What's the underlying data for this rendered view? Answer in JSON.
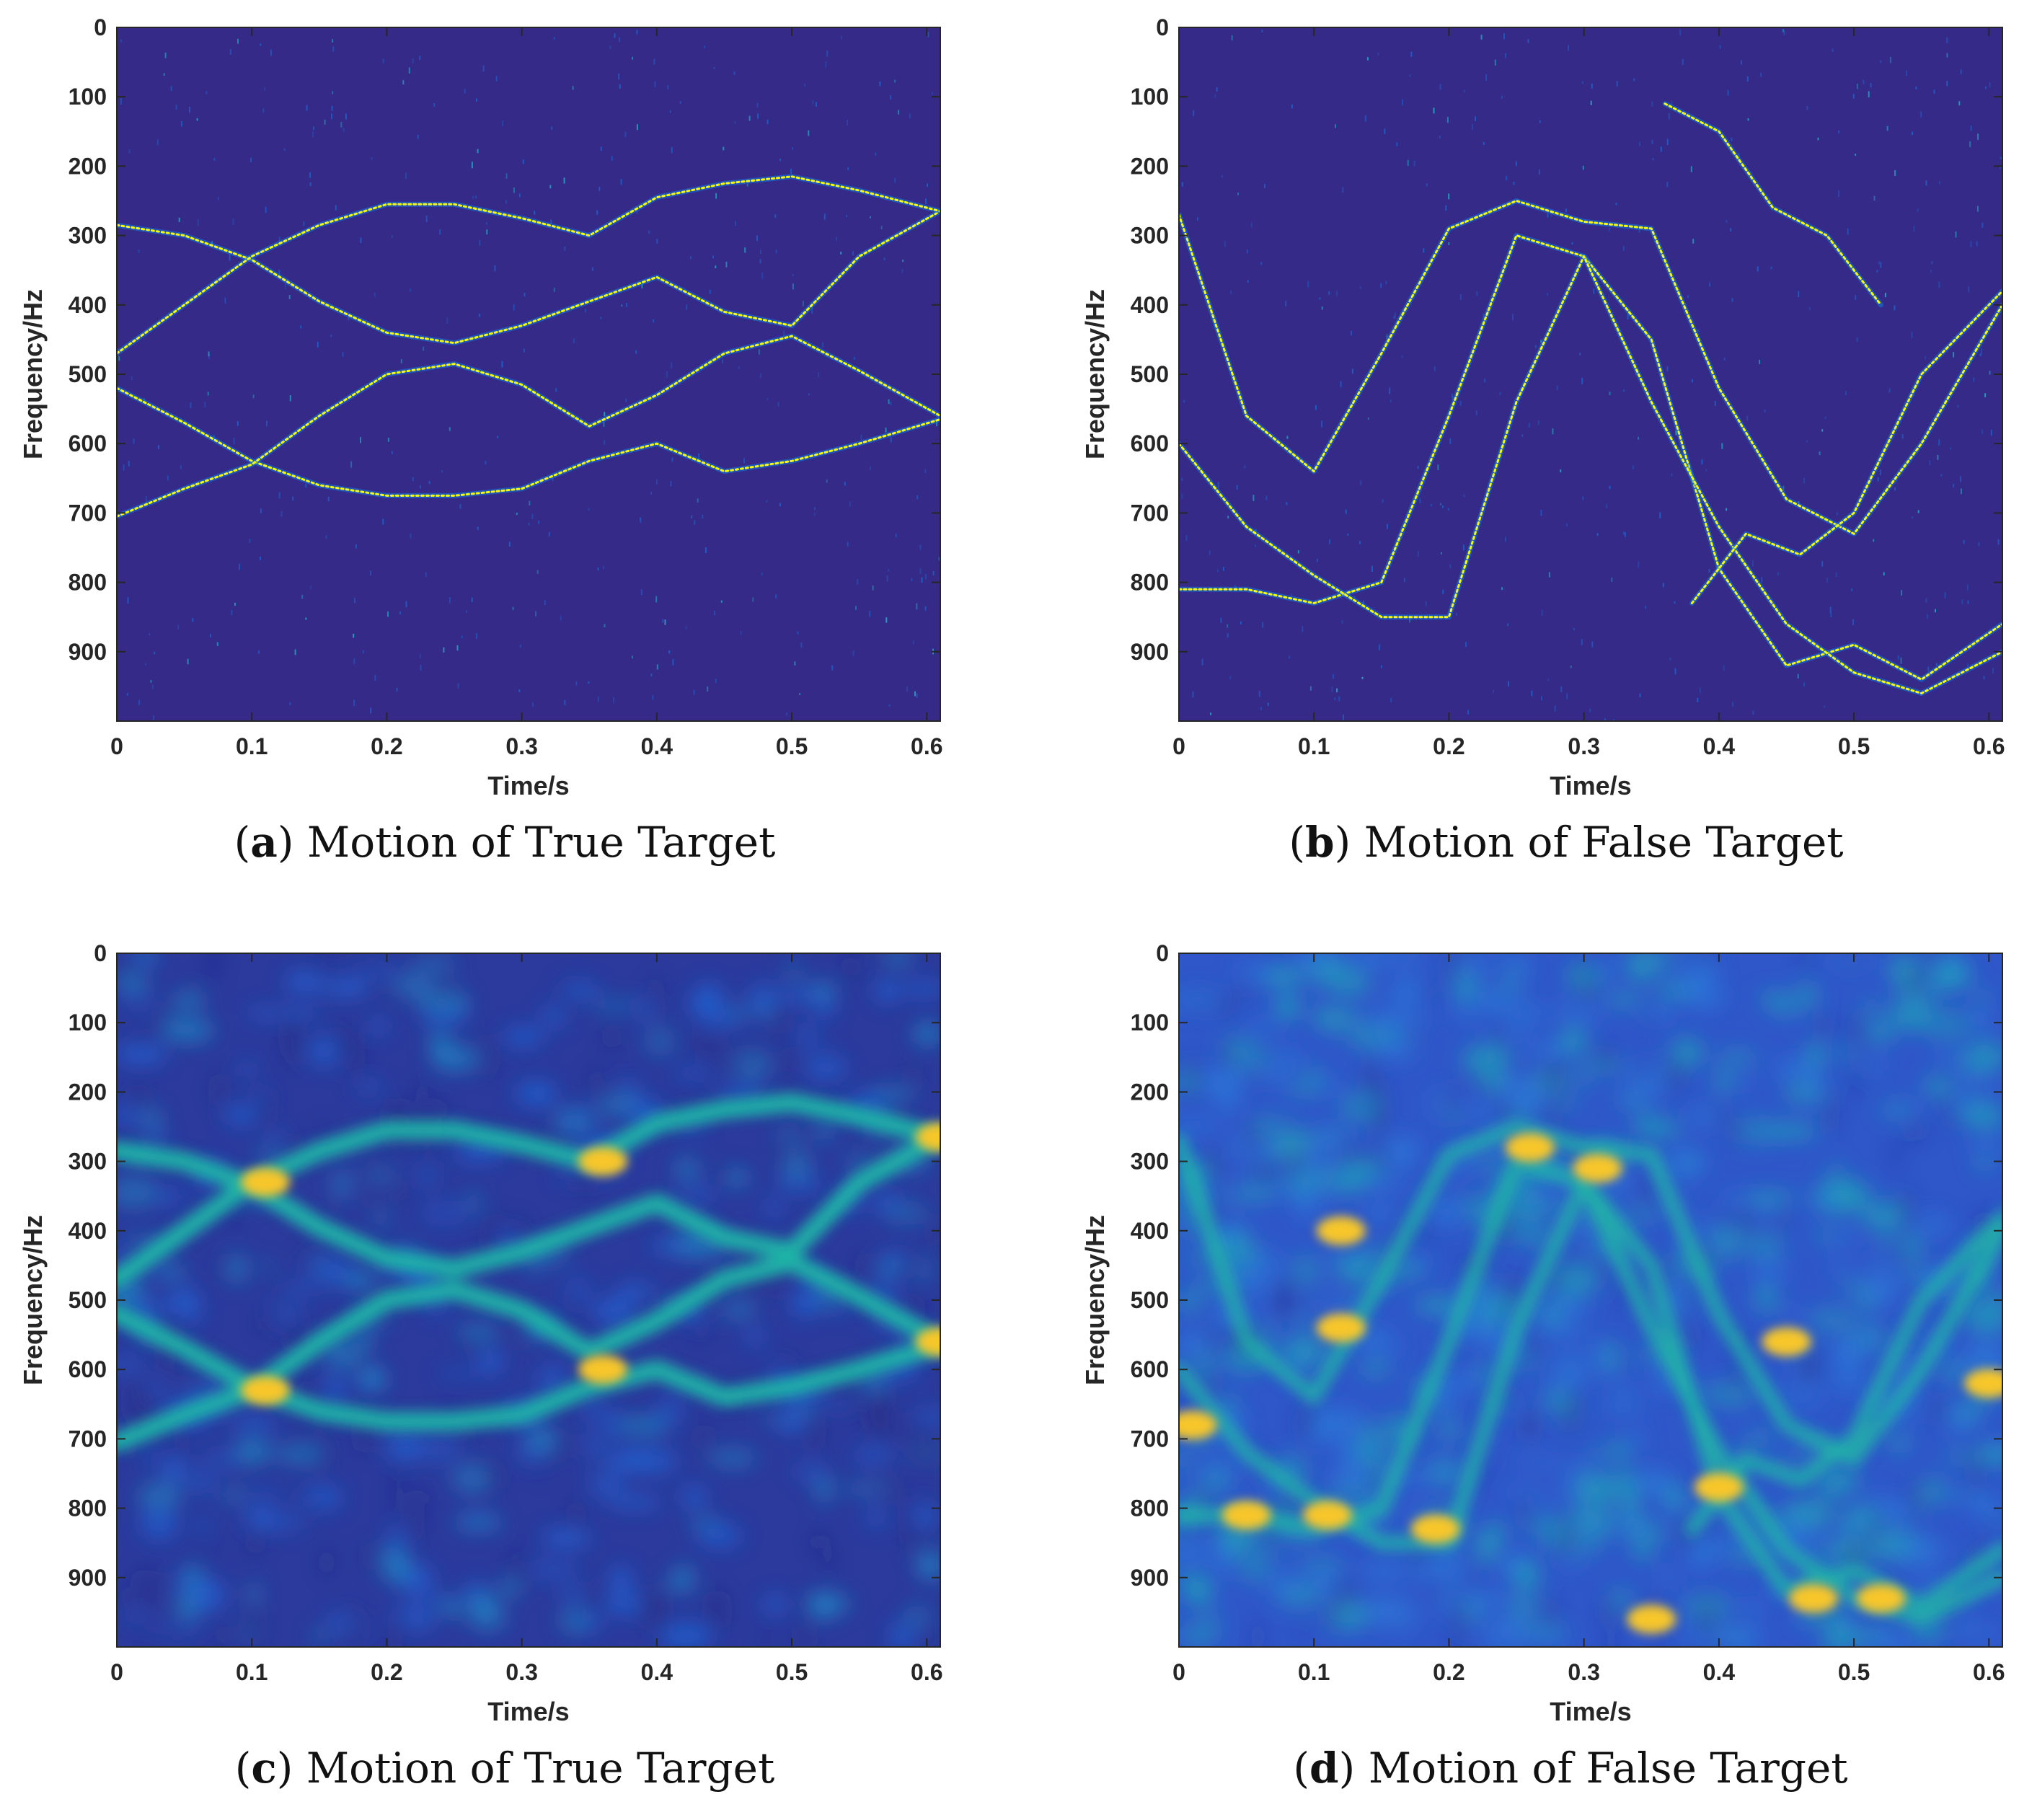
{
  "figure": {
    "panels": [
      {
        "caption_letter": "a",
        "caption_text": "Motion of True Target",
        "chart_data": {
          "type": "heatmap",
          "variant": "sparse",
          "xlabel": "Time/s",
          "ylabel": "Frequency/Hz",
          "xlim": [
            0,
            0.61
          ],
          "ylim": [
            0,
            1000
          ],
          "y_reversed": true,
          "xticks": [
            0,
            0.1,
            0.2,
            0.3,
            0.4,
            0.5,
            0.6
          ],
          "xtick_labels": [
            "0",
            "0.1",
            "0.2",
            "0.3",
            "0.4",
            "0.5",
            "0.6"
          ],
          "yticks": [
            0,
            100,
            200,
            300,
            400,
            500,
            600,
            700,
            800,
            900
          ],
          "ytick_labels": [
            "0",
            "100",
            "200",
            "300",
            "400",
            "500",
            "600",
            "700",
            "800",
            "900"
          ],
          "colormap": "parula",
          "colors": {
            "background": "#352a87",
            "ridge": "#f9fb0e",
            "mid": "#0f7ae1"
          },
          "series": [
            {
              "x": [
                0,
                0.05,
                0.1,
                0.15,
                0.2,
                0.25,
                0.3,
                0.35,
                0.4,
                0.45,
                0.5,
                0.55,
                0.61
              ],
              "y": [
                285,
                300,
                335,
                395,
                440,
                455,
                430,
                395,
                360,
                410,
                430,
                330,
                265
              ]
            },
            {
              "x": [
                0,
                0.05,
                0.1,
                0.15,
                0.2,
                0.25,
                0.3,
                0.35,
                0.4,
                0.45,
                0.5,
                0.55,
                0.61
              ],
              "y": [
                470,
                400,
                330,
                285,
                255,
                255,
                275,
                300,
                245,
                225,
                215,
                235,
                265
              ]
            },
            {
              "x": [
                0,
                0.05,
                0.1,
                0.15,
                0.2,
                0.25,
                0.3,
                0.35,
                0.4,
                0.45,
                0.5,
                0.55,
                0.61
              ],
              "y": [
                520,
                570,
                625,
                660,
                675,
                675,
                665,
                625,
                600,
                640,
                625,
                600,
                565
              ]
            },
            {
              "x": [
                0,
                0.05,
                0.1,
                0.15,
                0.2,
                0.25,
                0.3,
                0.35,
                0.4,
                0.45,
                0.5,
                0.55,
                0.61
              ],
              "y": [
                705,
                665,
                630,
                560,
                500,
                485,
                515,
                575,
                530,
                470,
                445,
                495,
                560
              ]
            }
          ]
        }
      },
      {
        "caption_letter": "b",
        "caption_text": "Motion of False Target",
        "chart_data": {
          "type": "heatmap",
          "variant": "sparse",
          "xlabel": "Time/s",
          "ylabel": "Frequency/Hz",
          "xlim": [
            0,
            0.61
          ],
          "ylim": [
            0,
            1000
          ],
          "y_reversed": true,
          "xticks": [
            0,
            0.1,
            0.2,
            0.3,
            0.4,
            0.5,
            0.6
          ],
          "xtick_labels": [
            "0",
            "0.1",
            "0.2",
            "0.3",
            "0.4",
            "0.5",
            "0.6"
          ],
          "yticks": [
            0,
            100,
            200,
            300,
            400,
            500,
            600,
            700,
            800,
            900
          ],
          "ytick_labels": [
            "0",
            "100",
            "200",
            "300",
            "400",
            "500",
            "600",
            "700",
            "800",
            "900"
          ],
          "colormap": "parula",
          "colors": {
            "background": "#352a87",
            "ridge": "#f9fb0e",
            "mid": "#0f7ae1"
          },
          "series": [
            {
              "x": [
                0,
                0.05,
                0.1,
                0.15,
                0.2,
                0.25,
                0.3,
                0.35,
                0.4,
                0.45,
                0.5,
                0.55,
                0.61
              ],
              "y": [
                810,
                810,
                830,
                800,
                560,
                300,
                330,
                450,
                780,
                920,
                890,
                940,
                860
              ]
            },
            {
              "x": [
                0,
                0.05,
                0.1,
                0.15,
                0.2,
                0.25,
                0.3,
                0.35,
                0.4,
                0.45,
                0.5,
                0.55,
                0.61
              ],
              "y": [
                270,
                560,
                640,
                470,
                290,
                250,
                280,
                290,
                520,
                680,
                730,
                600,
                400
              ]
            },
            {
              "x": [
                0,
                0.05,
                0.1,
                0.15,
                0.2,
                0.25,
                0.3,
                0.35,
                0.4,
                0.45,
                0.5,
                0.55,
                0.61
              ],
              "y": [
                600,
                720,
                790,
                850,
                850,
                540,
                330,
                540,
                720,
                860,
                930,
                960,
                900
              ]
            },
            {
              "x": [
                0.38,
                0.42,
                0.46,
                0.5,
                0.55,
                0.61
              ],
              "y": [
                830,
                730,
                760,
                700,
                500,
                380
              ]
            },
            {
              "x": [
                0.36,
                0.4,
                0.44,
                0.48,
                0.52
              ],
              "y": [
                110,
                150,
                260,
                300,
                400
              ]
            }
          ]
        }
      },
      {
        "caption_letter": "c",
        "caption_text": "Motion of True Target",
        "chart_data": {
          "type": "heatmap",
          "variant": "smooth",
          "xlabel": "Time/s",
          "ylabel": "Frequency/Hz",
          "xlim": [
            0,
            0.61
          ],
          "ylim": [
            0,
            1000
          ],
          "y_reversed": true,
          "xticks": [
            0,
            0.1,
            0.2,
            0.3,
            0.4,
            0.5,
            0.6
          ],
          "xtick_labels": [
            "0",
            "0.1",
            "0.2",
            "0.3",
            "0.4",
            "0.5",
            "0.6"
          ],
          "yticks": [
            0,
            100,
            200,
            300,
            400,
            500,
            600,
            700,
            800,
            900
          ],
          "ytick_labels": [
            "0",
            "100",
            "200",
            "300",
            "400",
            "500",
            "600",
            "700",
            "800",
            "900"
          ],
          "colormap": "parula",
          "colors": {
            "background": "#2b3a9c",
            "band": "#1fb6a8",
            "hot": "#f7c629"
          },
          "series": [
            {
              "x": [
                0,
                0.05,
                0.1,
                0.15,
                0.2,
                0.25,
                0.3,
                0.35,
                0.4,
                0.45,
                0.5,
                0.55,
                0.61
              ],
              "y": [
                285,
                300,
                335,
                395,
                440,
                455,
                430,
                395,
                360,
                410,
                430,
                330,
                265
              ]
            },
            {
              "x": [
                0,
                0.05,
                0.1,
                0.15,
                0.2,
                0.25,
                0.3,
                0.35,
                0.4,
                0.45,
                0.5,
                0.55,
                0.61
              ],
              "y": [
                470,
                400,
                330,
                285,
                255,
                255,
                275,
                300,
                245,
                225,
                215,
                235,
                265
              ]
            },
            {
              "x": [
                0,
                0.05,
                0.1,
                0.15,
                0.2,
                0.25,
                0.3,
                0.35,
                0.4,
                0.45,
                0.5,
                0.55,
                0.61
              ],
              "y": [
                520,
                570,
                625,
                660,
                675,
                675,
                665,
                625,
                600,
                640,
                625,
                600,
                565
              ]
            },
            {
              "x": [
                0,
                0.05,
                0.1,
                0.15,
                0.2,
                0.25,
                0.3,
                0.35,
                0.4,
                0.45,
                0.5,
                0.55,
                0.61
              ],
              "y": [
                705,
                665,
                630,
                560,
                500,
                485,
                515,
                575,
                530,
                470,
                445,
                495,
                560
              ]
            }
          ],
          "hotspots": [
            {
              "x": 0.11,
              "y": 330
            },
            {
              "x": 0.11,
              "y": 630
            },
            {
              "x": 0.36,
              "y": 300
            },
            {
              "x": 0.36,
              "y": 600
            },
            {
              "x": 0.61,
              "y": 265
            },
            {
              "x": 0.61,
              "y": 560
            }
          ]
        }
      },
      {
        "caption_letter": "d",
        "caption_text": "Motion of False Target",
        "chart_data": {
          "type": "heatmap",
          "variant": "smooth",
          "xlabel": "Time/s",
          "ylabel": "Frequency/Hz",
          "xlim": [
            0,
            0.61
          ],
          "ylim": [
            0,
            1000
          ],
          "y_reversed": true,
          "xticks": [
            0,
            0.1,
            0.2,
            0.3,
            0.4,
            0.5,
            0.6
          ],
          "xtick_labels": [
            "0",
            "0.1",
            "0.2",
            "0.3",
            "0.4",
            "0.5",
            "0.6"
          ],
          "yticks": [
            0,
            100,
            200,
            300,
            400,
            500,
            600,
            700,
            800,
            900
          ],
          "ytick_labels": [
            "0",
            "100",
            "200",
            "300",
            "400",
            "500",
            "600",
            "700",
            "800",
            "900"
          ],
          "colormap": "parula",
          "colors": {
            "background": "#2f57c9",
            "band": "#1fb6a8",
            "hot": "#f7c629"
          },
          "series": [
            {
              "x": [
                0,
                0.05,
                0.1,
                0.15,
                0.2,
                0.25,
                0.3,
                0.35,
                0.4,
                0.45,
                0.5,
                0.55,
                0.61
              ],
              "y": [
                810,
                810,
                830,
                800,
                560,
                300,
                330,
                450,
                780,
                920,
                890,
                940,
                860
              ]
            },
            {
              "x": [
                0,
                0.05,
                0.1,
                0.15,
                0.2,
                0.25,
                0.3,
                0.35,
                0.4,
                0.45,
                0.5,
                0.55,
                0.61
              ],
              "y": [
                270,
                560,
                640,
                470,
                290,
                250,
                280,
                290,
                520,
                680,
                730,
                600,
                400
              ]
            },
            {
              "x": [
                0,
                0.05,
                0.1,
                0.15,
                0.2,
                0.25,
                0.3,
                0.35,
                0.4,
                0.45,
                0.5,
                0.55,
                0.61
              ],
              "y": [
                600,
                720,
                790,
                850,
                850,
                540,
                330,
                540,
                720,
                860,
                930,
                960,
                900
              ]
            },
            {
              "x": [
                0.38,
                0.42,
                0.46,
                0.5,
                0.55,
                0.61
              ],
              "y": [
                830,
                730,
                760,
                700,
                500,
                380
              ]
            }
          ],
          "hotspots": [
            {
              "x": 0.12,
              "y": 540
            },
            {
              "x": 0.12,
              "y": 400
            },
            {
              "x": 0.31,
              "y": 310
            },
            {
              "x": 0.19,
              "y": 830
            },
            {
              "x": 0.05,
              "y": 810
            },
            {
              "x": 0.01,
              "y": 680
            },
            {
              "x": 0.26,
              "y": 280
            },
            {
              "x": 0.52,
              "y": 930
            },
            {
              "x": 0.47,
              "y": 930
            },
            {
              "x": 0.45,
              "y": 560
            },
            {
              "x": 0.35,
              "y": 960
            },
            {
              "x": 0.6,
              "y": 620
            },
            {
              "x": 0.11,
              "y": 810
            },
            {
              "x": 0.4,
              "y": 770
            }
          ]
        }
      }
    ]
  }
}
